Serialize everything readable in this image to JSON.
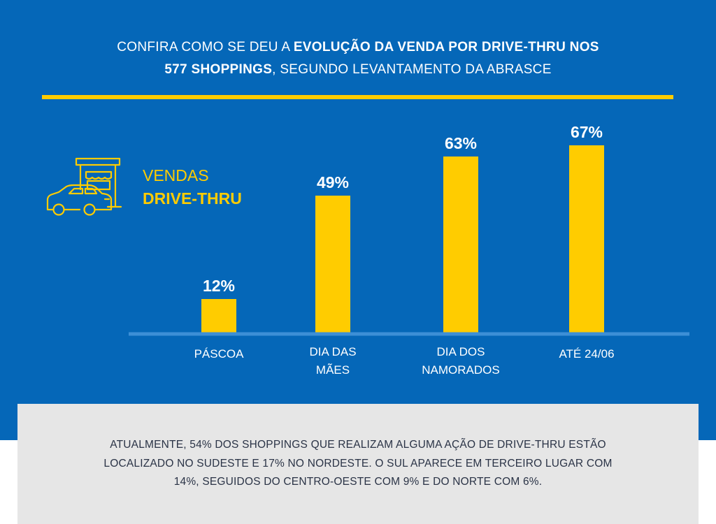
{
  "colors": {
    "background": "#0567b8",
    "accent": "#ffcc00",
    "axis": "#3d8fd6",
    "text": "#ffffff",
    "panel": "#e6e6e6",
    "note_text": "#2a3346"
  },
  "headline": {
    "line1_normal": "CONFIRA COMO SE DEU A ",
    "line1_bold": "EVOLUÇÃO DA VENDA POR DRIVE-THRU NOS",
    "line2_bold": "577 SHOPPINGS",
    "line2_normal": ", SEGUNDO LEVANTAMENTO DA ABRASCE"
  },
  "brand": {
    "line1": "VENDAS",
    "line2": "DRIVE-THRU",
    "icon": "drive-thru-car-icon"
  },
  "chart_data": {
    "type": "bar",
    "title": "Evolução da venda por drive-thru nos 577 shoppings",
    "categories": [
      [
        "PÁSCOA"
      ],
      [
        "DIA DAS",
        "MÃES"
      ],
      [
        "DIA DOS",
        "NAMORADOS"
      ],
      [
        "ATÉ 24/06"
      ]
    ],
    "values": [
      12,
      49,
      63,
      67
    ],
    "value_labels": [
      "12%",
      "49%",
      "63%",
      "67%"
    ],
    "unit": "%",
    "ylim": [
      0,
      67
    ],
    "grid": false,
    "xlabel": "",
    "ylabel": ""
  },
  "note": {
    "lines": [
      "ATUALMENTE, 54% DOS SHOPPINGS QUE REALIZAM ALGUMA AÇÃO DE DRIVE-THRU ESTÃO",
      "LOCALIZADO NO SUDESTE E 17% NO NORDESTE. O SUL APARECE EM TERCEIRO LUGAR COM",
      "14%, SEGUIDOS DO CENTRO-OESTE COM 9% E DO NORTE COM 6%."
    ]
  }
}
